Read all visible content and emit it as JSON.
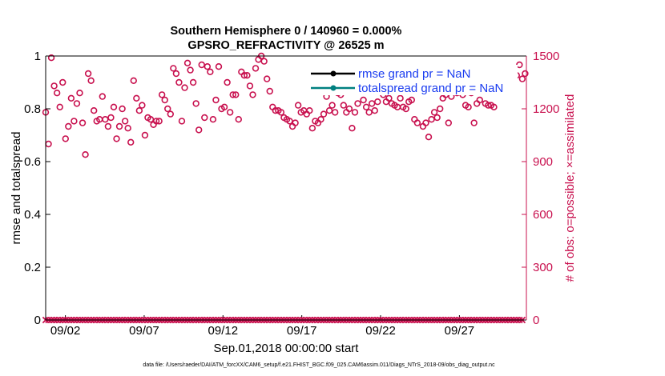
{
  "chart_data": {
    "type": "scatter",
    "title": "Southern Hemisphere 0 / 140960 = 0.000%",
    "subtitle": "GPSRO_REFRACTIVITY @ 26525 m",
    "xlabel": "Sep.01,2018 00:00:00 start",
    "ylabel": "rmse and totalspread",
    "y2label": "# of obs: o=possible; ×=assimilated",
    "footnote": "data file: /Users/raeder/DAI/ATM_forcXX/CAM6_setup/f.e21.FHIST_BGC.f09_025.CAM6assim.011/Diags_NTrS_2018-09/obs_diag_output.nc",
    "x_ticks": [
      "09/02",
      "09/07",
      "09/12",
      "09/17",
      "09/22",
      "09/27"
    ],
    "x_tick_day": [
      2,
      7,
      12,
      17,
      22,
      27
    ],
    "xlim_day": [
      0.75,
      31.25
    ],
    "ylim": [
      0,
      1
    ],
    "y_ticks": [
      "0",
      "0.2",
      "0.4",
      "0.6",
      "0.8",
      "1"
    ],
    "y2lim": [
      0,
      1500
    ],
    "y2_ticks": [
      "0",
      "300",
      "600",
      "900",
      "1200",
      "1500"
    ],
    "grid": false,
    "legend_position": "top-right",
    "series": [
      {
        "name": "rmse grand pr = NaN",
        "color": "#000000",
        "values": []
      },
      {
        "name": "totalspread grand pr = NaN",
        "color": "#008080",
        "values": []
      },
      {
        "name": "",
        "axis": "right",
        "marker": "o",
        "color": "#c8104e",
        "day": [
          0.75,
          0.93,
          1.11,
          1.29,
          1.47,
          1.65,
          1.83,
          2.01,
          2.19,
          2.37,
          2.55,
          2.73,
          2.91,
          3.09,
          3.27,
          3.45,
          3.63,
          3.81,
          3.99,
          4.17,
          4.35,
          4.53,
          4.71,
          4.89,
          5.07,
          5.25,
          5.43,
          5.61,
          5.79,
          5.97,
          6.15,
          6.33,
          6.51,
          6.69,
          6.87,
          7.05,
          7.23,
          7.41,
          7.59,
          7.77,
          7.95,
          8.13,
          8.31,
          8.49,
          8.67,
          8.85,
          9.03,
          9.21,
          9.39,
          9.57,
          9.75,
          9.93,
          10.11,
          10.29,
          10.47,
          10.65,
          10.83,
          11.01,
          11.19,
          11.37,
          11.55,
          11.73,
          11.91,
          12.09,
          12.27,
          12.45,
          12.63,
          12.81,
          12.99,
          13.17,
          13.35,
          13.53,
          13.71,
          13.89,
          14.07,
          14.25,
          14.43,
          14.61,
          14.79,
          14.97,
          15.15,
          15.33,
          15.51,
          15.69,
          15.87,
          16.05,
          16.23,
          16.41,
          16.59,
          16.77,
          16.95,
          17.13,
          17.31,
          17.49,
          17.67,
          17.85,
          18.03,
          18.21,
          18.39,
          18.57,
          18.75,
          18.93,
          19.11,
          19.29,
          19.47,
          19.65,
          19.83,
          20.01,
          20.19,
          20.37,
          20.55,
          20.73,
          20.91,
          21.09,
          21.27,
          21.45,
          21.63,
          21.81,
          21.99,
          22.17,
          22.35,
          22.53,
          22.71,
          22.89,
          23.07,
          23.25,
          23.43,
          23.61,
          23.79,
          23.97,
          24.15,
          24.33,
          24.51,
          24.69,
          24.87,
          25.05,
          25.23,
          25.41,
          25.59,
          25.77,
          25.95,
          26.13,
          26.31,
          26.49,
          26.67,
          26.85,
          27.03,
          27.21,
          27.39,
          27.57,
          27.75,
          27.93,
          28.11,
          28.29,
          28.47,
          28.65,
          28.83,
          29.01,
          29.19,
          29.37,
          29.55,
          29.73,
          29.91,
          30.09,
          30.27,
          30.45,
          30.63,
          30.81,
          30.99,
          31.17
        ],
        "values": [
          1180,
          1000,
          1490,
          1330,
          1290,
          1210,
          1350,
          1030,
          1100,
          1260,
          1130,
          1230,
          1290,
          1120,
          940,
          1400,
          1360,
          1190,
          1130,
          1140,
          1270,
          1140,
          1100,
          1150,
          1210,
          1030,
          1100,
          1200,
          1130,
          1090,
          1010,
          1360,
          1260,
          1190,
          1220,
          1050,
          1150,
          1140,
          1110,
          1130,
          1130,
          1280,
          1250,
          1200,
          1170,
          1430,
          1400,
          1350,
          1130,
          1320,
          1460,
          1420,
          1350,
          1230,
          1080,
          1450,
          1150,
          1440,
          1410,
          1140,
          1250,
          1440,
          1200,
          1210,
          1350,
          1180,
          1280,
          1280,
          1140,
          1410,
          1390,
          1390,
          1330,
          1280,
          1430,
          1480,
          1500,
          1470,
          1370,
          1300,
          1210,
          1190,
          1190,
          1180,
          1150,
          1140,
          1130,
          1100,
          1120,
          1220,
          1180,
          1190,
          1170,
          1190,
          1090,
          1130,
          1120,
          1140,
          1170,
          1270,
          1190,
          1220,
          1180,
          1290,
          1280,
          1220,
          1180,
          1200,
          1090,
          1180,
          1230,
          1300,
          1250,
          1210,
          1180,
          1230,
          1190,
          1240,
          1300,
          1280,
          1240,
          1260,
          1230,
          1220,
          1210,
          1260,
          1210,
          1200,
          1240,
          1250,
          1140,
          1120,
          1320,
          1100,
          1120,
          1040,
          1140,
          1180,
          1150,
          1200,
          1260,
          1280,
          1120,
          1270,
          1310,
          1290,
          1320,
          1280,
          1220,
          1210,
          1290,
          1120,
          1230,
          1250,
          1300,
          1230,
          1220,
          1220,
          1210,
          1300,
          1350,
          1340,
          1300,
          1360,
          1410,
          1330,
          1390,
          1450,
          1370,
          1400
        ]
      },
      {
        "name": "",
        "axis": "right",
        "marker": "x",
        "color": "#c8104e",
        "day": [
          0.75,
          0.93,
          1.11,
          1.29,
          1.47,
          1.65,
          1.83,
          2.01,
          2.19,
          2.37,
          2.55,
          2.73,
          2.91,
          3.09,
          3.27,
          3.45,
          3.63,
          3.81,
          3.99,
          4.17,
          4.35,
          4.53,
          4.71,
          4.89,
          5.07,
          5.25,
          5.43,
          5.61,
          5.79,
          5.97,
          6.15,
          6.33,
          6.51,
          6.69,
          6.87,
          7.05,
          7.23,
          7.41,
          7.59,
          7.77,
          7.95,
          8.13,
          8.31,
          8.49,
          8.67,
          8.85,
          9.03,
          9.21,
          9.39,
          9.57,
          9.75,
          9.93,
          10.11,
          10.29,
          10.47,
          10.65,
          10.83,
          11.01,
          11.19,
          11.37,
          11.55,
          11.73,
          11.91,
          12.09,
          12.27,
          12.45,
          12.63,
          12.81,
          12.99,
          13.17,
          13.35,
          13.53,
          13.71,
          13.89,
          14.07,
          14.25,
          14.43,
          14.61,
          14.79,
          14.97,
          15.15,
          15.33,
          15.51,
          15.69,
          15.87,
          16.05,
          16.23,
          16.41,
          16.59,
          16.77,
          16.95,
          17.13,
          17.31,
          17.49,
          17.67,
          17.85,
          18.03,
          18.21,
          18.39,
          18.57,
          18.75,
          18.93,
          19.11,
          19.29,
          19.47,
          19.65,
          19.83,
          20.01,
          20.19,
          20.37,
          20.55,
          20.73,
          20.91,
          21.09,
          21.27,
          21.45,
          21.63,
          21.81,
          21.99,
          22.17,
          22.35,
          22.53,
          22.71,
          22.89,
          23.07,
          23.25,
          23.43,
          23.61,
          23.79,
          23.97,
          24.15,
          24.33,
          24.51,
          24.69,
          24.87,
          25.05,
          25.23,
          25.41,
          25.59,
          25.77,
          25.95,
          26.13,
          26.31,
          26.49,
          26.67,
          26.85,
          27.03,
          27.21,
          27.39,
          27.57,
          27.75,
          27.93,
          28.11,
          28.29,
          28.47,
          28.65,
          28.83,
          29.01,
          29.19,
          29.37,
          29.55,
          29.73,
          29.91,
          30.09,
          30.27,
          30.45,
          30.63,
          30.81,
          30.99,
          31.17
        ],
        "values": [
          0,
          0,
          0,
          0,
          0,
          0,
          0,
          0,
          0,
          0,
          0,
          0,
          0,
          0,
          0,
          0,
          0,
          0,
          0,
          0,
          0,
          0,
          0,
          0,
          0,
          0,
          0,
          0,
          0,
          0,
          0,
          0,
          0,
          0,
          0,
          0,
          0,
          0,
          0,
          0,
          0,
          0,
          0,
          0,
          0,
          0,
          0,
          0,
          0,
          0,
          0,
          0,
          0,
          0,
          0,
          0,
          0,
          0,
          0,
          0,
          0,
          0,
          0,
          0,
          0,
          0,
          0,
          0,
          0,
          0,
          0,
          0,
          0,
          0,
          0,
          0,
          0,
          0,
          0,
          0,
          0,
          0,
          0,
          0,
          0,
          0,
          0,
          0,
          0,
          0,
          0,
          0,
          0,
          0,
          0,
          0,
          0,
          0,
          0,
          0,
          0,
          0,
          0,
          0,
          0,
          0,
          0,
          0,
          0,
          0,
          0,
          0,
          0,
          0,
          0,
          0,
          0,
          0,
          0,
          0,
          0,
          0,
          0,
          0,
          0,
          0,
          0,
          0,
          0,
          0,
          0,
          0,
          0,
          0,
          0,
          0,
          0,
          0,
          0,
          0,
          0,
          0,
          0,
          0,
          0,
          0,
          0,
          0,
          0,
          0,
          0,
          0,
          0,
          0,
          0,
          0,
          0,
          0,
          0,
          0,
          0,
          0,
          0,
          0,
          0,
          0,
          0,
          0,
          0
        ]
      }
    ]
  },
  "colors": {
    "left_axis": "#000000",
    "right_axis": "#c8104e",
    "legend_text": "#1a3cf0"
  }
}
